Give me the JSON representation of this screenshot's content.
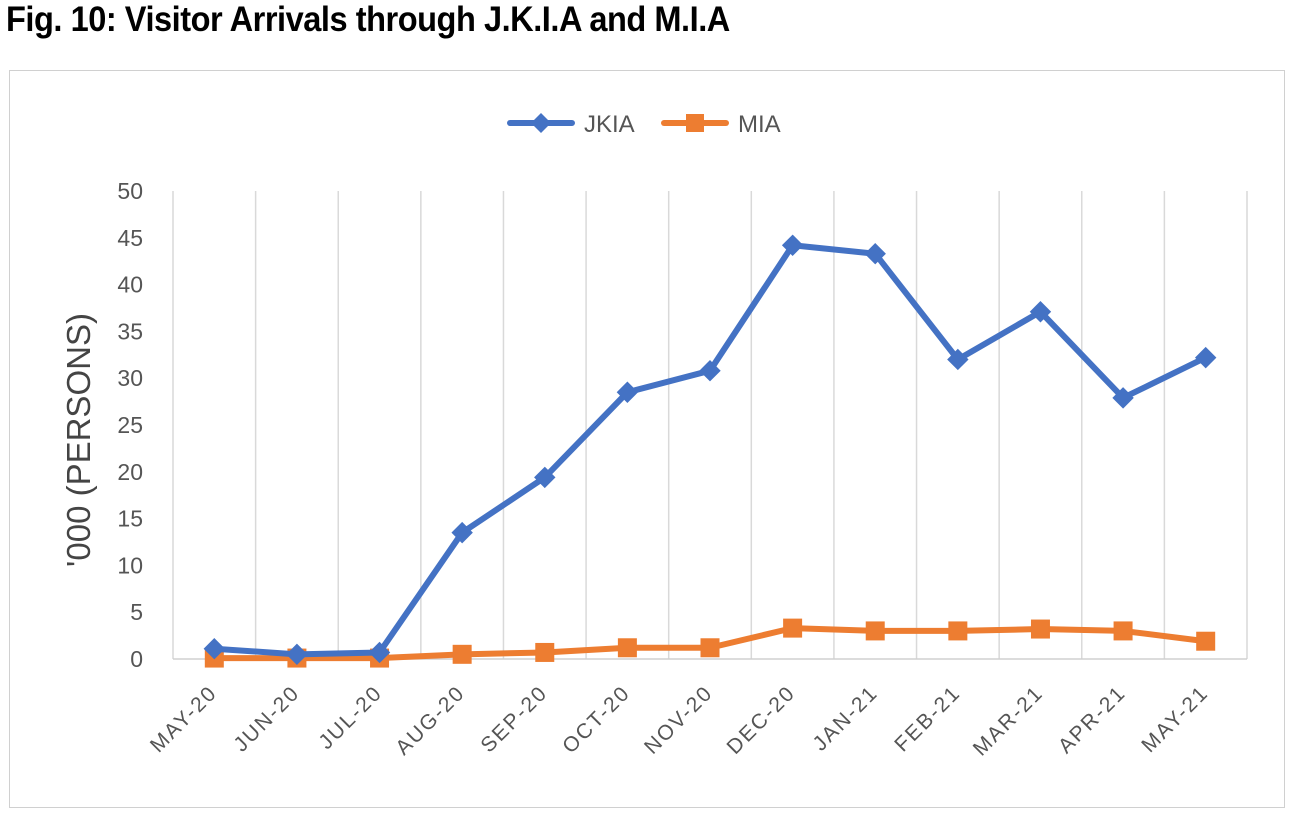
{
  "figure": {
    "title": "Fig. 10: Visitor Arrivals through J.K.I.A and M.I.A"
  },
  "chart_data": {
    "type": "line",
    "title": "",
    "xlabel": "",
    "ylabel": "'000 (PERSONS)",
    "ylim": [
      0,
      50
    ],
    "yticks": [
      "0",
      "5",
      "10",
      "15",
      "20",
      "25",
      "30",
      "35",
      "40",
      "45",
      "50"
    ],
    "grid": "vertical",
    "legend_position": "top-center",
    "categories": [
      "MAY-20",
      "JUN-20",
      "JUL-20",
      "AUG-20",
      "SEP-20",
      "OCT-20",
      "NOV-20",
      "DEC-20",
      "JAN-21",
      "FEB-21",
      "MAR-21",
      "APR-21",
      "MAY-21"
    ],
    "series": [
      {
        "name": "JKIA",
        "marker": "diamond",
        "color": "#4472C4",
        "values": [
          1.1,
          0.5,
          0.7,
          13.5,
          19.4,
          28.5,
          30.8,
          44.2,
          43.3,
          32.0,
          37.1,
          27.9,
          32.2
        ]
      },
      {
        "name": "MIA",
        "marker": "square",
        "color": "#ED7D31",
        "values": [
          0.1,
          0.1,
          0.1,
          0.5,
          0.7,
          1.2,
          1.2,
          3.3,
          3.0,
          3.0,
          3.2,
          3.0,
          1.9
        ]
      }
    ]
  }
}
